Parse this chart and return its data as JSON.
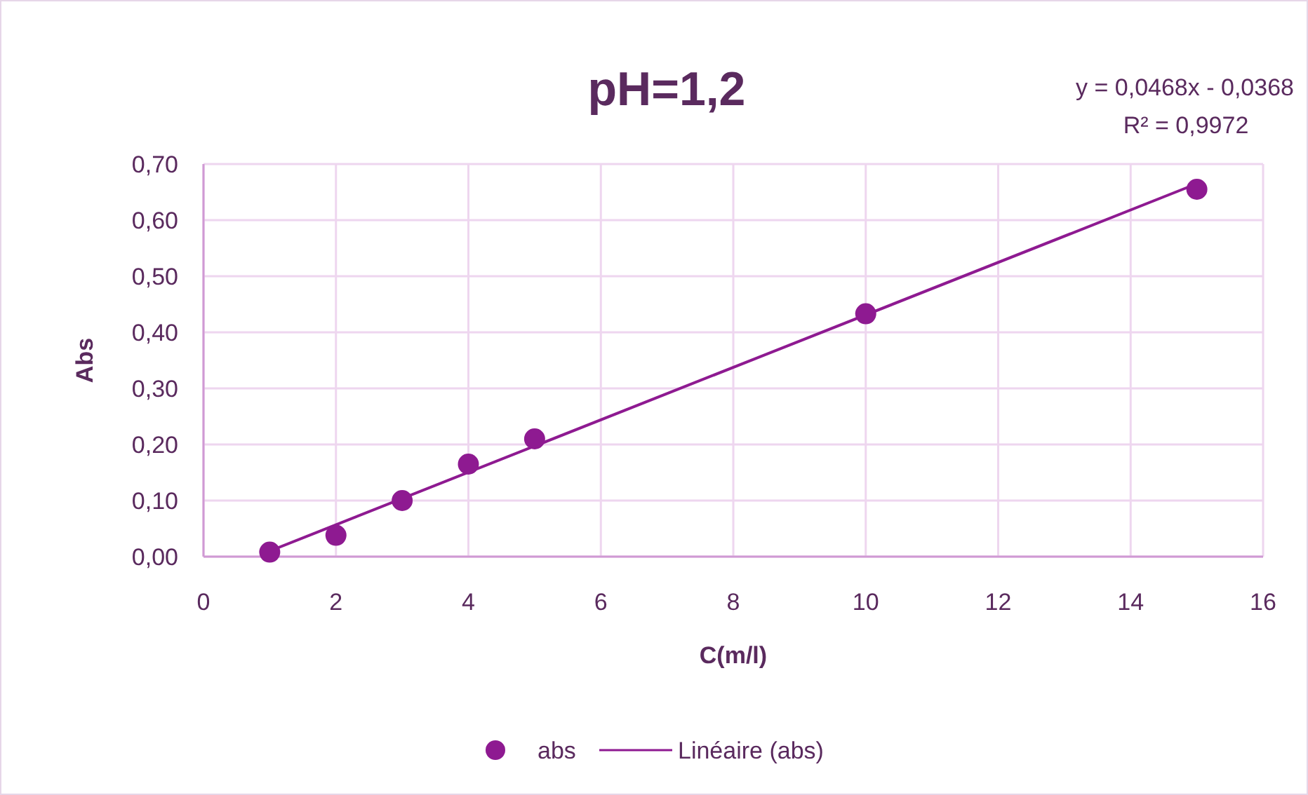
{
  "chart_data": {
    "type": "scatter",
    "title": "pH=1,2",
    "xlabel": "C(m/l)",
    "ylabel": "Abs",
    "annotations": [
      "y = 0,0468x - 0,0368",
      "R² = 0,9972"
    ],
    "series": [
      {
        "name": "abs",
        "color": "#8e1a91",
        "x": [
          1,
          2,
          3,
          4,
          5,
          10,
          15
        ],
        "values": [
          0.008,
          0.038,
          0.1,
          0.165,
          0.21,
          0.433,
          0.655
        ],
        "marker": "circle"
      },
      {
        "name": "Linéaire (abs)",
        "type": "line",
        "color": "#8e1a91",
        "x": [
          1,
          15
        ],
        "values": [
          0.01,
          0.665
        ],
        "marker": "none",
        "line_style": "solid"
      }
    ],
    "xlim": [
      0,
      16
    ],
    "xticks": [
      0,
      2,
      4,
      6,
      8,
      10,
      12,
      14,
      16
    ],
    "ylim": [
      0,
      0.7
    ],
    "yticks": [
      {
        "value": 0,
        "label": "0,00"
      },
      {
        "value": 0.1,
        "label": "0,10"
      },
      {
        "value": 0.2,
        "label": "0,20"
      },
      {
        "value": 0.3,
        "label": "0,30"
      },
      {
        "value": 0.4,
        "label": "0,40"
      },
      {
        "value": 0.5,
        "label": "0,50"
      },
      {
        "value": 0.6,
        "label": "0,60"
      },
      {
        "value": 0.7,
        "label": "0,70"
      }
    ],
    "grid": true,
    "legend": "bottom"
  }
}
